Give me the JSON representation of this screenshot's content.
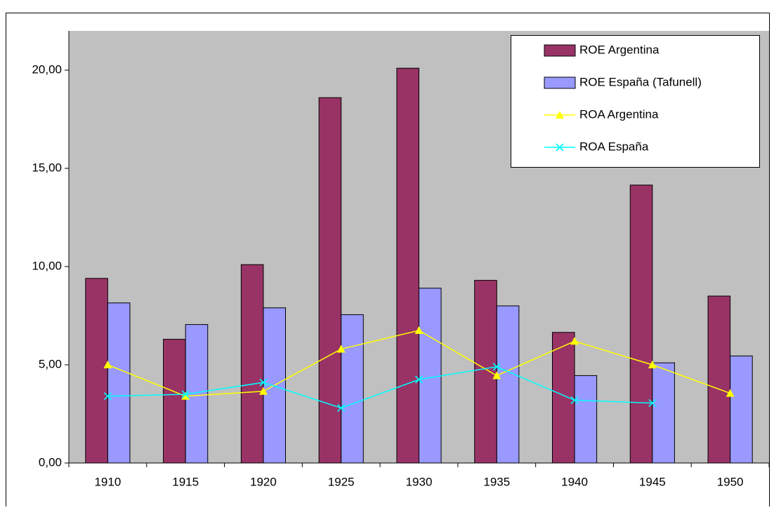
{
  "chart_data": {
    "type": "bar-line",
    "categories": [
      "1910",
      "1915",
      "1920",
      "1925",
      "1930",
      "1935",
      "1940",
      "1945",
      "1950"
    ],
    "series": [
      {
        "name": "ROE Argentina",
        "type": "bar",
        "color": "#993366",
        "values": [
          9.4,
          6.3,
          10.1,
          18.6,
          20.1,
          9.3,
          6.65,
          14.15,
          8.5
        ]
      },
      {
        "name": "ROE España (Tafunell)",
        "type": "bar",
        "color": "#9999ff",
        "values": [
          8.15,
          7.05,
          7.9,
          7.55,
          8.9,
          8.0,
          4.45,
          5.1,
          5.45
        ]
      },
      {
        "name": "ROA Argentina",
        "type": "line",
        "marker": "triangle",
        "color": "#ffff00",
        "values": [
          5.0,
          3.4,
          3.65,
          5.8,
          6.75,
          4.45,
          6.2,
          5.0,
          3.55
        ]
      },
      {
        "name": "ROA España",
        "type": "line",
        "marker": "x",
        "color": "#00ffff",
        "values": [
          3.4,
          3.5,
          4.1,
          2.8,
          4.25,
          4.9,
          3.2,
          3.05,
          null
        ]
      }
    ],
    "ylim": [
      0,
      22
    ],
    "yticks": [
      {
        "value": 0,
        "label": "0,00"
      },
      {
        "value": 5,
        "label": "5,00"
      },
      {
        "value": 10,
        "label": "10,00"
      },
      {
        "value": 15,
        "label": "15,00"
      },
      {
        "value": 20,
        "label": "20,00"
      }
    ],
    "legend": "top-right"
  }
}
